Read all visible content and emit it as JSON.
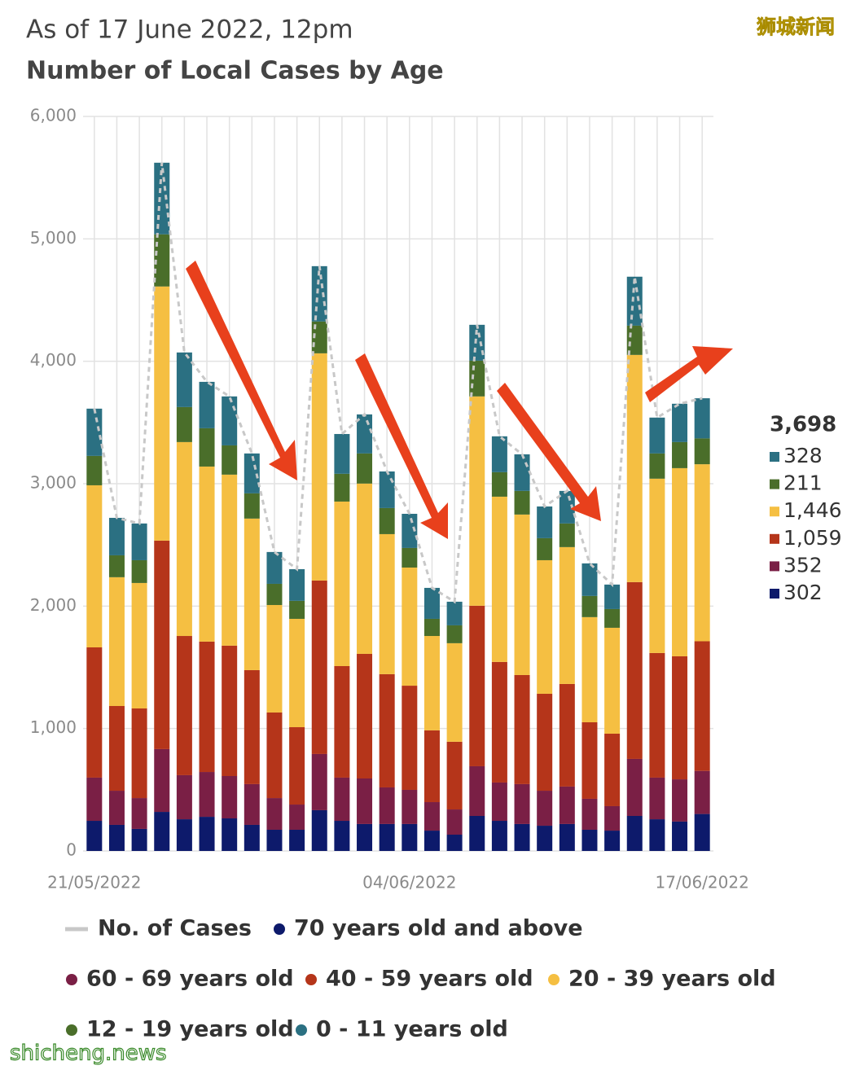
{
  "chart_data": {
    "type": "bar",
    "stacked": true,
    "subtitle": "As of 17 June 2022, 12pm",
    "title": "Number of Local Cases by Age",
    "watermarks": [
      "狮城新闻",
      "shicheng.news"
    ],
    "categories": [
      "21/05/2022",
      null,
      null,
      null,
      null,
      null,
      null,
      null,
      null,
      null,
      null,
      null,
      null,
      null,
      "04/06/2022",
      null,
      null,
      null,
      null,
      null,
      null,
      null,
      null,
      null,
      null,
      null,
      null,
      "17/06/2022"
    ],
    "total_label": "3,698",
    "series": [
      {
        "name": "No. of Cases",
        "type": "line",
        "color": "#c8c8c8",
        "values": [
          3613,
          2721,
          2675,
          5622,
          4072,
          3832,
          3713,
          3247,
          2442,
          2302,
          4777,
          3406,
          3566,
          3100,
          2754,
          2149,
          2036,
          4298,
          3387,
          3240,
          2814,
          2941,
          2349,
          2176,
          4691,
          3540,
          3653,
          3698
        ]
      },
      {
        "name": "70 years old and above",
        "color": "#0d1a6b",
        "values": [
          246,
          213,
          180,
          319,
          259,
          279,
          266,
          213,
          173,
          173,
          333,
          246,
          220,
          220,
          220,
          166,
          133,
          286,
          246,
          220,
          206,
          220,
          173,
          166,
          286,
          259,
          240,
          302
        ]
      },
      {
        "name": "60 - 69 years old",
        "color": "#7a1f45",
        "values": [
          353,
          279,
          252,
          513,
          360,
          366,
          346,
          333,
          259,
          206,
          459,
          353,
          372,
          299,
          279,
          233,
          206,
          406,
          313,
          326,
          286,
          306,
          253,
          200,
          466,
          340,
          345,
          352
        ]
      },
      {
        "name": "40 - 59 years old",
        "color": "#b5351a",
        "values": [
          1064,
          692,
          732,
          1703,
          1137,
          1065,
          1065,
          931,
          699,
          632,
          1417,
          911,
          1018,
          925,
          851,
          586,
          553,
          1311,
          985,
          891,
          792,
          838,
          625,
          592,
          1444,
          1018,
          1005,
          1059
        ],
        "value_labels": [
          null,
          null,
          null,
          null,
          null,
          null,
          null,
          null,
          null,
          null,
          null,
          null,
          null,
          null,
          null,
          null,
          null,
          null,
          null,
          null,
          null,
          null,
          null,
          null,
          null,
          null,
          null,
          "1,059"
        ]
      },
      {
        "name": "20 - 39 years old",
        "color": "#f5bf42",
        "values": [
          1324,
          1052,
          1025,
          2076,
          1584,
          1430,
          1397,
          1238,
          878,
          885,
          1856,
          1344,
          1391,
          1144,
          965,
          771,
          805,
          1710,
          1350,
          1311,
          1091,
          1118,
          859,
          865,
          1856,
          1424,
          1537,
          1446
        ],
        "value_labels": [
          null,
          null,
          null,
          null,
          null,
          null,
          null,
          null,
          null,
          null,
          null,
          null,
          null,
          null,
          null,
          null,
          null,
          null,
          null,
          null,
          null,
          null,
          null,
          null,
          null,
          null,
          null,
          "1,446"
        ]
      },
      {
        "name": "12 - 19 years old",
        "color": "#4a6e2a",
        "values": [
          240,
          179,
          186,
          426,
          286,
          313,
          239,
          206,
          173,
          147,
          260,
          227,
          246,
          213,
          160,
          140,
          146,
          292,
          200,
          193,
          180,
          193,
          173,
          153,
          239,
          206,
          213,
          211
        ]
      },
      {
        "name": "0 - 11 years old",
        "color": "#2b7082",
        "values": [
          386,
          306,
          300,
          585,
          446,
          379,
          400,
          326,
          260,
          259,
          452,
          325,
          319,
          299,
          279,
          253,
          193,
          293,
          293,
          299,
          259,
          266,
          266,
          200,
          400,
          293,
          313,
          328
        ]
      }
    ],
    "ylim": [
      0,
      6000
    ],
    "yticks": [
      0,
      {
        "value": 1000,
        "label": "1,000"
      },
      {
        "value": 2000,
        "label": "2,000"
      },
      {
        "value": 3000,
        "label": "3,000"
      },
      {
        "value": 4000,
        "label": "4,000"
      },
      {
        "value": 5000,
        "label": "5,000"
      },
      {
        "value": 6000,
        "label": "6,000"
      }
    ],
    "grid": true
  }
}
